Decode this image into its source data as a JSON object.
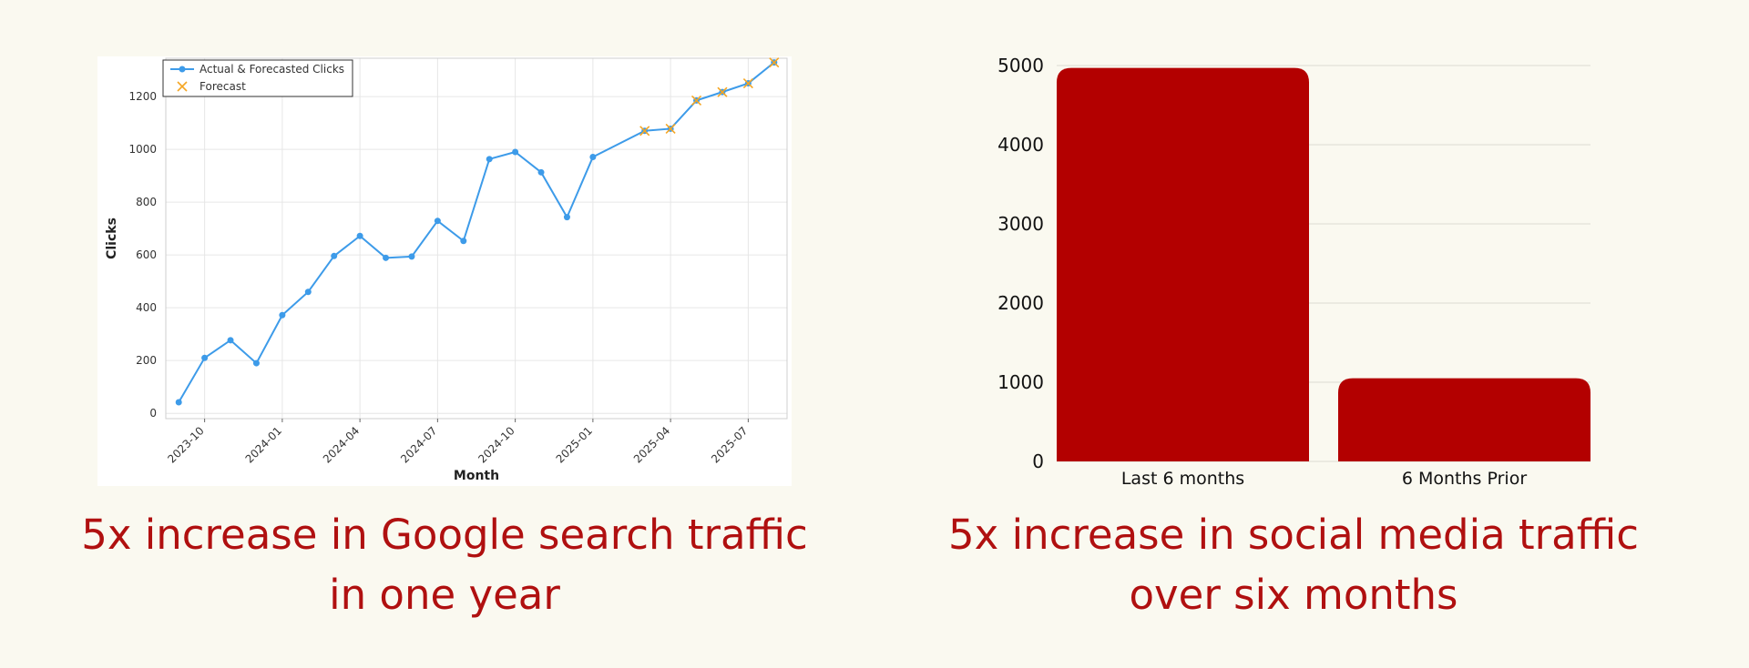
{
  "captions": {
    "left": [
      "5x increase in Google search traffic",
      "in one year"
    ],
    "right": [
      "5x increase in social media traffic",
      "over six months"
    ]
  },
  "chart_data": [
    {
      "type": "line",
      "xlabel": "Month",
      "ylabel": "Clicks",
      "ylim": [
        -20,
        1345
      ],
      "yticks": [
        0,
        200,
        400,
        600,
        800,
        1000,
        1200
      ],
      "xticks": [
        "2023-10",
        "2024-01",
        "2024-04",
        "2024-07",
        "2024-10",
        "2025-01",
        "2025-04",
        "2025-07"
      ],
      "grid": true,
      "legend": {
        "placement": "top-left",
        "entries": [
          "Actual & Forecasted Clicks",
          "Forecast"
        ]
      },
      "colors": {
        "line": "#3d9be9",
        "forecast": "#f5a623"
      },
      "series": [
        {
          "name": "Actual & Forecasted Clicks",
          "x": [
            "2023-09",
            "2023-10",
            "2023-11",
            "2023-12",
            "2024-01",
            "2024-02",
            "2024-03",
            "2024-04",
            "2024-05",
            "2024-06",
            "2024-07",
            "2024-08",
            "2024-09",
            "2024-10",
            "2024-11",
            "2024-12",
            "2025-01",
            "2025-03",
            "2025-04",
            "2025-05",
            "2025-06",
            "2025-07",
            "2025-08"
          ],
          "values": [
            42,
            210,
            277,
            190,
            372,
            460,
            596,
            672,
            589,
            594,
            729,
            653,
            963,
            990,
            913,
            743,
            971,
            1070,
            1078,
            1185,
            1217,
            1250,
            1329
          ]
        },
        {
          "name": "Forecast",
          "x": [
            "2025-03",
            "2025-04",
            "2025-05",
            "2025-06",
            "2025-07",
            "2025-08"
          ],
          "values": [
            1070,
            1078,
            1185,
            1217,
            1250,
            1329
          ]
        }
      ]
    },
    {
      "type": "bar",
      "categories": [
        "Last 6 months",
        "6 Months Prior"
      ],
      "values": [
        4970,
        1050
      ],
      "ylim": [
        0,
        5000
      ],
      "yticks": [
        0,
        1000,
        2000,
        3000,
        4000,
        5000
      ],
      "grid": true,
      "colors": {
        "bar": "#b30000"
      }
    }
  ]
}
